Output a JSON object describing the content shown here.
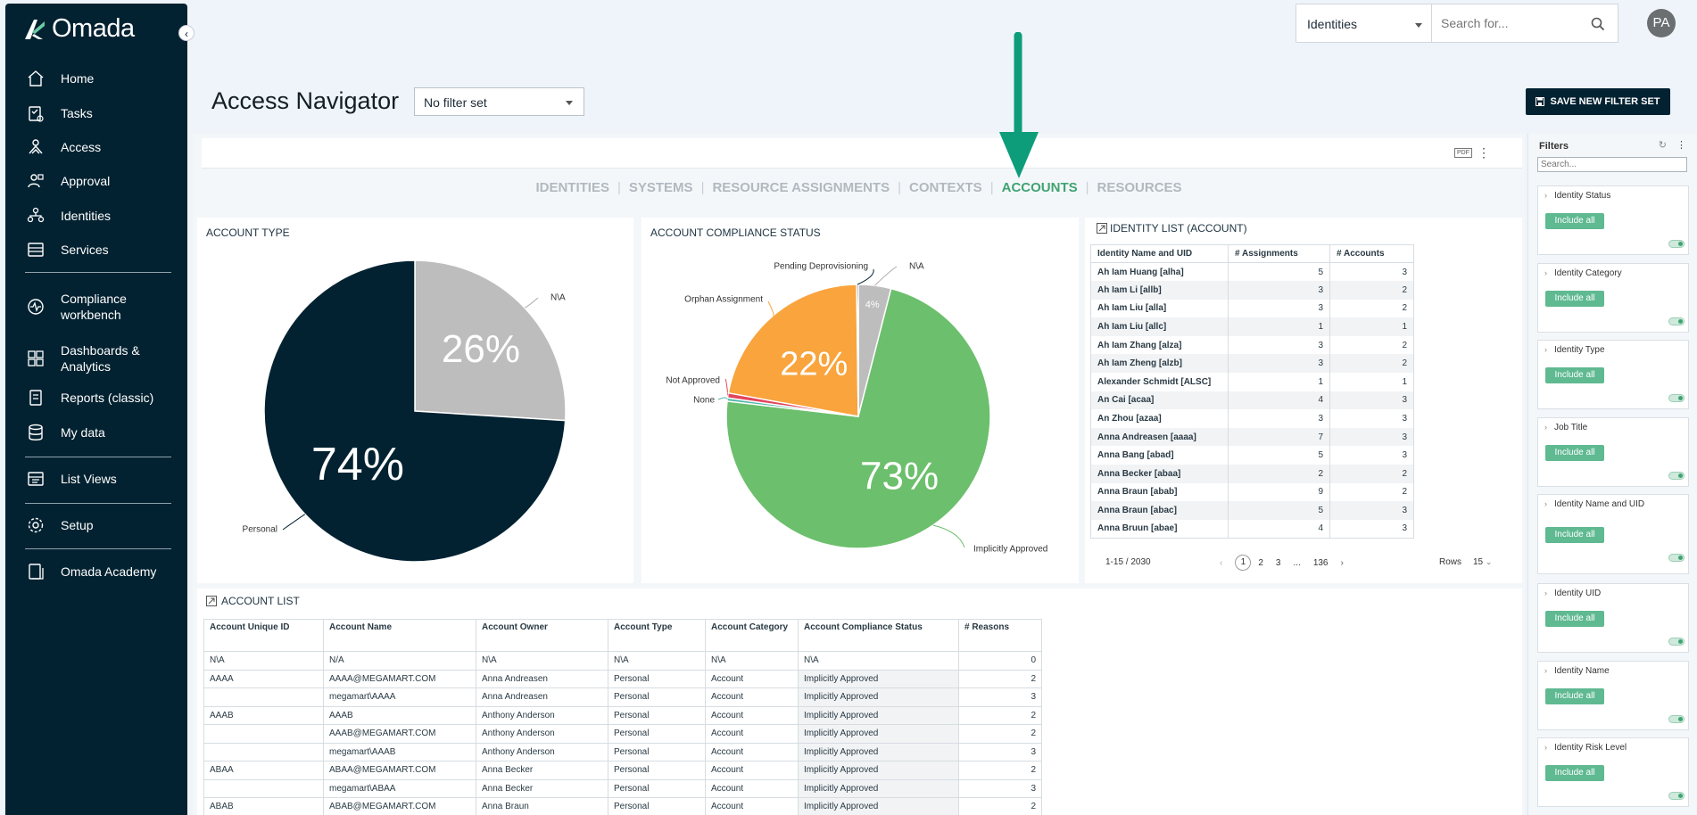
{
  "sidebar": {
    "logo": "Omada",
    "items": [
      {
        "label": "Home",
        "icon": "home-icon"
      },
      {
        "label": "Tasks",
        "icon": "tasks-icon"
      },
      {
        "label": "Access",
        "icon": "access-icon"
      },
      {
        "label": "Approval",
        "icon": "approval-icon"
      },
      {
        "label": "Identities",
        "icon": "identities-icon"
      },
      {
        "label": "Services",
        "icon": "services-icon"
      },
      {
        "label": "Compliance workbench",
        "icon": "compliance-icon"
      },
      {
        "label": "Dashboards & Analytics",
        "icon": "dashboards-icon"
      },
      {
        "label": "Reports (classic)",
        "icon": "reports-icon"
      },
      {
        "label": "My data",
        "icon": "my-data-icon"
      },
      {
        "label": "List Views",
        "icon": "list-views-icon"
      },
      {
        "label": "Setup",
        "icon": "gear-icon"
      },
      {
        "label": "Omada Academy",
        "icon": "academy-icon"
      }
    ]
  },
  "topbar": {
    "scope_select": "Identities",
    "search_placeholder": "Search for...",
    "avatar": "PA"
  },
  "header": {
    "title": "Access Navigator",
    "filter_select": "No filter set",
    "save_button": "SAVE NEW FILTER SET"
  },
  "toolbar": {
    "pdf": "PDF",
    "more": "⋮"
  },
  "tabs": [
    "IDENTITIES",
    "SYSTEMS",
    "RESOURCE ASSIGNMENTS",
    "CONTEXTS",
    "ACCOUNTS",
    "RESOURCES"
  ],
  "active_tab": "ACCOUNTS",
  "charts": {
    "account_type_title": "ACCOUNT TYPE",
    "compliance_title": "ACCOUNT COMPLIANCE STATUS"
  },
  "chart_data": [
    {
      "type": "pie",
      "title": "ACCOUNT TYPE",
      "categories": [
        "N\\A",
        "Personal"
      ],
      "values": [
        26,
        74
      ],
      "labels": [
        "26%",
        "74%"
      ],
      "colors": [
        "#bdbdbd",
        "#032231"
      ]
    },
    {
      "type": "pie",
      "title": "ACCOUNT COMPLIANCE STATUS",
      "categories": [
        "N\\A",
        "Implicitly Approved",
        "None",
        "Not Approved",
        "Orphan Assignment",
        "Pending Deprovisioning"
      ],
      "values": [
        4,
        73,
        0.4,
        0.6,
        22,
        0.2
      ],
      "labels": [
        "4%",
        "73%",
        "",
        "",
        "22%",
        ""
      ],
      "colors": [
        "#bdbdbd",
        "#6cbf6c",
        "#4fb7a8",
        "#e2455c",
        "#f9a43d",
        "#032231"
      ]
    }
  ],
  "identity_list": {
    "title": "IDENTITY LIST (ACCOUNT)",
    "columns": [
      "Identity Name and UID",
      "# Assignments",
      "# Accounts"
    ],
    "rows": [
      [
        "Ah Iam Huang [alha]",
        "5",
        "3"
      ],
      [
        "Ah Iam Li [allb]",
        "3",
        "2"
      ],
      [
        "Ah Iam Liu [alla]",
        "3",
        "2"
      ],
      [
        "Ah Iam Liu [allc]",
        "1",
        "1"
      ],
      [
        "Ah Iam Zhang [alza]",
        "3",
        "2"
      ],
      [
        "Ah Iam Zheng [alzb]",
        "3",
        "2"
      ],
      [
        "Alexander Schmidt [ALSC]",
        "1",
        "1"
      ],
      [
        "An Cai [acaa]",
        "4",
        "3"
      ],
      [
        "An Zhou [azaa]",
        "3",
        "3"
      ],
      [
        "Anna Andreasen [aaaa]",
        "7",
        "3"
      ],
      [
        "Anna Bang [abad]",
        "5",
        "3"
      ],
      [
        "Anna Becker [abaa]",
        "2",
        "2"
      ],
      [
        "Anna Braun [abab]",
        "9",
        "2"
      ],
      [
        "Anna Braun [abac]",
        "5",
        "3"
      ],
      [
        "Anna Bruun [abae]",
        "4",
        "3"
      ]
    ],
    "range": "1-15 / 2030",
    "pages": [
      "1",
      "2",
      "3",
      "...",
      "136"
    ],
    "rows_label": "Rows",
    "rows_value": "15"
  },
  "account_list": {
    "title": "ACCOUNT LIST",
    "columns": [
      "Account Unique ID",
      "Account Name",
      "Account Owner",
      "Account Type",
      "Account Category",
      "Account Compliance Status",
      "# Reasons"
    ],
    "rows": [
      [
        "N\\A",
        "N/A",
        "N\\A",
        "N\\A",
        "N\\A",
        "N\\A",
        "0"
      ],
      [
        "AAAA",
        "AAAA@MEGAMART.COM",
        "Anna Andreasen",
        "Personal",
        "Account",
        "Implicitly Approved",
        "2"
      ],
      [
        "",
        "megamart\\AAAA",
        "Anna Andreasen",
        "Personal",
        "Account",
        "Implicitly Approved",
        "3"
      ],
      [
        "AAAB",
        "AAAB",
        "Anthony Anderson",
        "Personal",
        "Account",
        "Implicitly Approved",
        "2"
      ],
      [
        "",
        "AAAB@MEGAMART.COM",
        "Anthony Anderson",
        "Personal",
        "Account",
        "Implicitly Approved",
        "2"
      ],
      [
        "",
        "megamart\\AAAB",
        "Anthony Anderson",
        "Personal",
        "Account",
        "Implicitly Approved",
        "3"
      ],
      [
        "ABAA",
        "ABAA@MEGAMART.COM",
        "Anna Becker",
        "Personal",
        "Account",
        "Implicitly Approved",
        "2"
      ],
      [
        "",
        "megamart\\ABAA",
        "Anna Becker",
        "Personal",
        "Account",
        "Implicitly Approved",
        "3"
      ],
      [
        "ABAB",
        "ABAB@MEGAMART.COM",
        "Anna Braun",
        "Personal",
        "Account",
        "Implicitly Approved",
        "2"
      ]
    ]
  },
  "filters": {
    "title": "Filters",
    "search_placeholder": "Search...",
    "include_label": "Include all",
    "groups": [
      "Identity Status",
      "Identity Category",
      "Identity Type",
      "Job Title",
      "Identity Name and UID",
      "Identity UID",
      "Identity Name",
      "Identity Risk Level"
    ]
  },
  "colors": {
    "navy": "#032231",
    "green_accent": "#3fa372",
    "arrow": "#0d9d7a"
  }
}
